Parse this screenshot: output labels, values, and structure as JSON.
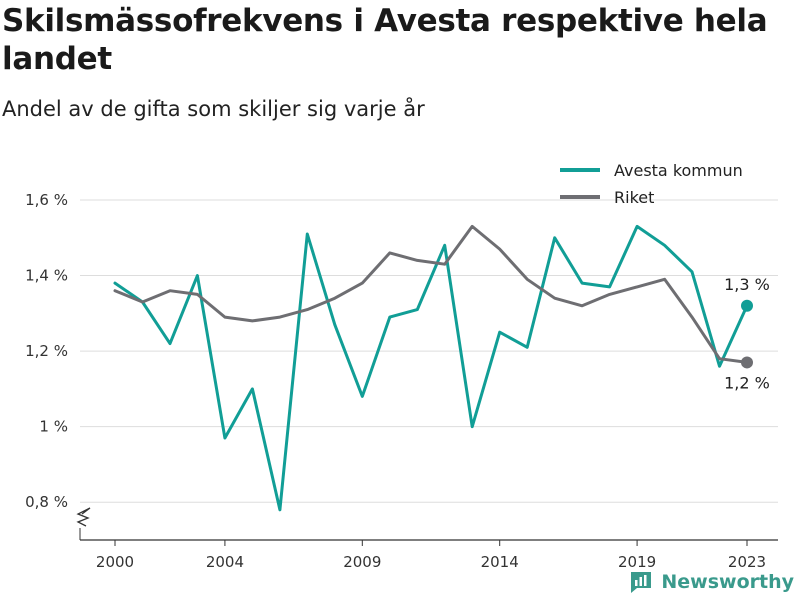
{
  "title": "Skilsmässofrekvens i Avesta respektive hela landet",
  "subtitle": "Andel av de gifta som skiljer sig varje år",
  "brand": {
    "name": "Newsworthy",
    "icon": "bar-chart-icon"
  },
  "colors": {
    "series_1": "#119e96",
    "series_2": "#6e6e72",
    "grid": "#dddddd",
    "axis": "#333333"
  },
  "chart_data": {
    "type": "line",
    "title": "Skilsmässofrekvens i Avesta respektive hela landet",
    "subtitle": "Andel av de gifta som skiljer sig varje år",
    "x": [
      2000,
      2001,
      2002,
      2003,
      2004,
      2005,
      2006,
      2007,
      2008,
      2009,
      2010,
      2011,
      2012,
      2013,
      2014,
      2015,
      2016,
      2017,
      2018,
      2019,
      2020,
      2021,
      2022,
      2023
    ],
    "series": [
      {
        "name": "Avesta kommun",
        "color": "#119e96",
        "values": [
          1.38,
          1.33,
          1.22,
          1.4,
          0.97,
          1.1,
          0.78,
          1.51,
          1.27,
          1.08,
          1.29,
          1.31,
          1.48,
          1.0,
          1.25,
          1.21,
          1.5,
          1.38,
          1.37,
          1.53,
          1.48,
          1.41,
          1.16,
          1.32
        ],
        "end_label": "1,3 %"
      },
      {
        "name": "Riket",
        "color": "#6e6e72",
        "values": [
          1.36,
          1.33,
          1.36,
          1.35,
          1.29,
          1.28,
          1.29,
          1.31,
          1.34,
          1.38,
          1.46,
          1.44,
          1.43,
          1.53,
          1.47,
          1.39,
          1.34,
          1.32,
          1.35,
          1.37,
          1.39,
          1.29,
          1.18,
          1.17
        ],
        "end_label": "1,2 %"
      }
    ],
    "x_ticks": [
      2000,
      2004,
      2009,
      2014,
      2019,
      2023
    ],
    "x_tick_labels": [
      "2000",
      "2004",
      "2009",
      "2014",
      "2019",
      "2023"
    ],
    "y_ticks": [
      0.8,
      1.0,
      1.2,
      1.4,
      1.6
    ],
    "y_tick_labels": [
      "0,8 %",
      "1 %",
      "1,2 %",
      "1,4 %",
      "1,6 %"
    ],
    "ylim": [
      0.7,
      1.6
    ],
    "grid": true,
    "legend": "top-right",
    "axis_break": true
  }
}
